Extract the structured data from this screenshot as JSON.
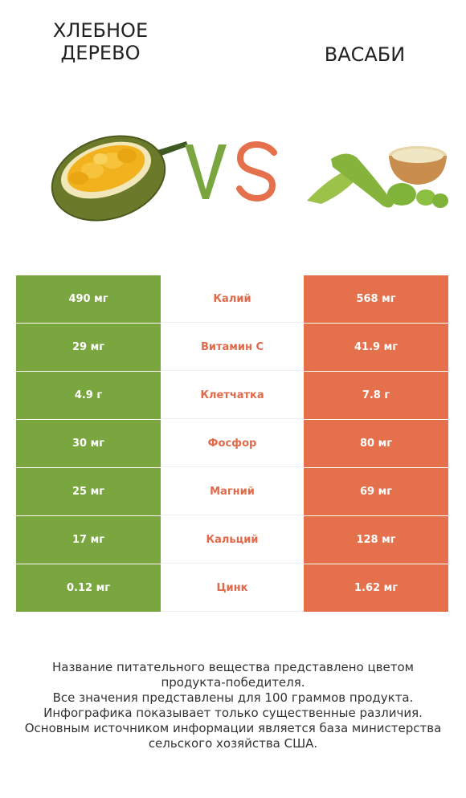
{
  "left_product": {
    "name": "ХЛЕБНОЕ ДЕРЕВО",
    "color": "#7aa640"
  },
  "right_product": {
    "name": "ВАСАБИ",
    "color": "#e4704c"
  },
  "vs": {
    "v": "V",
    "s": "S"
  },
  "rows": [
    {
      "left": "490 мг",
      "nutrient": "Калий",
      "right": "568 мг",
      "winner": "right"
    },
    {
      "left": "29 мг",
      "nutrient": "Витамин C",
      "right": "41.9 мг",
      "winner": "right"
    },
    {
      "left": "4.9 г",
      "nutrient": "Клетчатка",
      "right": "7.8 г",
      "winner": "right"
    },
    {
      "left": "30 мг",
      "nutrient": "Фосфор",
      "right": "80 мг",
      "winner": "right"
    },
    {
      "left": "25 мг",
      "nutrient": "Магний",
      "right": "69 мг",
      "winner": "right"
    },
    {
      "left": "17 мг",
      "nutrient": "Кальций",
      "right": "128 мг",
      "winner": "right"
    },
    {
      "left": "0.12 мг",
      "nutrient": "Цинк",
      "right": "1.62 мг",
      "winner": "right"
    }
  ],
  "footer": {
    "line1": "Название питательного вещества представлено цветом",
    "line2": "продукта-победителя.",
    "line3": "Все значения представлены для 100 граммов продукта.",
    "line4": "Инфографика показывает только существенные различия.",
    "line5": "Основным источником информации является база министерства",
    "line6": "сельского хозяйства США."
  }
}
